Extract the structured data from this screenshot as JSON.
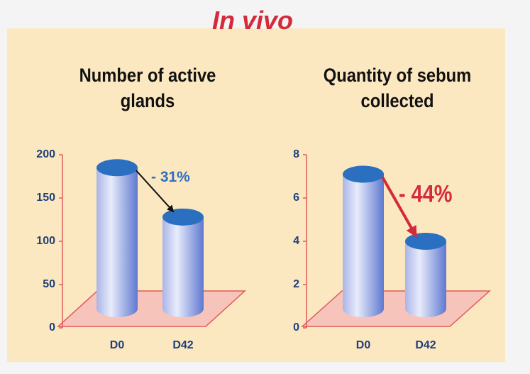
{
  "title": "In vivo",
  "chart_data": [
    {
      "type": "bar",
      "title": "Number of active glands",
      "categories": [
        "D0",
        "D42"
      ],
      "values": [
        185,
        128
      ],
      "ylim": [
        0,
        200
      ],
      "yticks": [
        0,
        50,
        100,
        150,
        200
      ],
      "annotation": {
        "text": "- 31%",
        "color": "#2f6fc0",
        "arrow_color": "#111111"
      }
    },
    {
      "type": "bar",
      "title": "Quantity of sebum collected",
      "categories": [
        "D0",
        "D42"
      ],
      "values": [
        7.1,
        4.0
      ],
      "ylim": [
        0,
        8
      ],
      "yticks": [
        0,
        2,
        4,
        6,
        8
      ],
      "annotation": {
        "text": "- 44%",
        "color": "#d42a3c",
        "arrow_color": "#d42a3c"
      }
    }
  ]
}
